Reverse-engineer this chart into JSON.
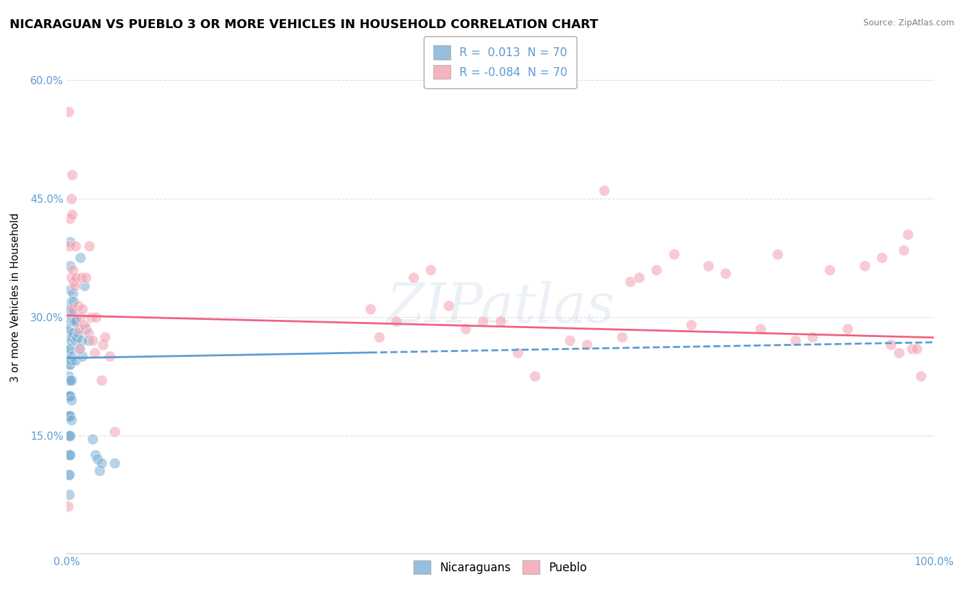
{
  "title": "NICARAGUAN VS PUEBLO 3 OR MORE VEHICLES IN HOUSEHOLD CORRELATION CHART",
  "source": "Source: ZipAtlas.com",
  "ylabel_label": "3 or more Vehicles in Household",
  "nicaraguan_color": "#7bafd4",
  "pueblo_color": "#f4a0b0",
  "trendline_nicaraguan_color": "#5b9bd5",
  "trendline_pueblo_color": "#f06080",
  "watermark": "ZIPatlas",
  "nicaraguan_points": [
    [
      0.001,
      0.245
    ],
    [
      0.001,
      0.22
    ],
    [
      0.001,
      0.2
    ],
    [
      0.001,
      0.175
    ],
    [
      0.002,
      0.3
    ],
    [
      0.002,
      0.275
    ],
    [
      0.002,
      0.25
    ],
    [
      0.002,
      0.225
    ],
    [
      0.002,
      0.2
    ],
    [
      0.002,
      0.175
    ],
    [
      0.002,
      0.15
    ],
    [
      0.002,
      0.125
    ],
    [
      0.002,
      0.1
    ],
    [
      0.003,
      0.31
    ],
    [
      0.003,
      0.285
    ],
    [
      0.003,
      0.26
    ],
    [
      0.003,
      0.24
    ],
    [
      0.003,
      0.22
    ],
    [
      0.003,
      0.2
    ],
    [
      0.003,
      0.175
    ],
    [
      0.003,
      0.15
    ],
    [
      0.003,
      0.125
    ],
    [
      0.003,
      0.1
    ],
    [
      0.003,
      0.075
    ],
    [
      0.004,
      0.395
    ],
    [
      0.004,
      0.365
    ],
    [
      0.004,
      0.335
    ],
    [
      0.004,
      0.31
    ],
    [
      0.004,
      0.285
    ],
    [
      0.004,
      0.26
    ],
    [
      0.004,
      0.24
    ],
    [
      0.004,
      0.22
    ],
    [
      0.004,
      0.2
    ],
    [
      0.004,
      0.175
    ],
    [
      0.004,
      0.15
    ],
    [
      0.004,
      0.125
    ],
    [
      0.005,
      0.32
    ],
    [
      0.005,
      0.295
    ],
    [
      0.005,
      0.27
    ],
    [
      0.005,
      0.245
    ],
    [
      0.005,
      0.22
    ],
    [
      0.005,
      0.195
    ],
    [
      0.005,
      0.17
    ],
    [
      0.006,
      0.3
    ],
    [
      0.006,
      0.275
    ],
    [
      0.006,
      0.25
    ],
    [
      0.007,
      0.33
    ],
    [
      0.007,
      0.305
    ],
    [
      0.007,
      0.28
    ],
    [
      0.008,
      0.32
    ],
    [
      0.008,
      0.295
    ],
    [
      0.009,
      0.295
    ],
    [
      0.01,
      0.27
    ],
    [
      0.01,
      0.245
    ],
    [
      0.011,
      0.295
    ],
    [
      0.012,
      0.275
    ],
    [
      0.013,
      0.28
    ],
    [
      0.015,
      0.26
    ],
    [
      0.016,
      0.375
    ],
    [
      0.017,
      0.27
    ],
    [
      0.018,
      0.25
    ],
    [
      0.02,
      0.34
    ],
    [
      0.022,
      0.285
    ],
    [
      0.025,
      0.27
    ],
    [
      0.03,
      0.145
    ],
    [
      0.033,
      0.125
    ],
    [
      0.035,
      0.12
    ],
    [
      0.038,
      0.105
    ],
    [
      0.04,
      0.115
    ],
    [
      0.055,
      0.115
    ]
  ],
  "pueblo_points": [
    [
      0.001,
      0.06
    ],
    [
      0.002,
      0.56
    ],
    [
      0.003,
      0.39
    ],
    [
      0.004,
      0.425
    ],
    [
      0.005,
      0.45
    ],
    [
      0.005,
      0.35
    ],
    [
      0.006,
      0.43
    ],
    [
      0.006,
      0.48
    ],
    [
      0.007,
      0.36
    ],
    [
      0.007,
      0.31
    ],
    [
      0.008,
      0.345
    ],
    [
      0.009,
      0.34
    ],
    [
      0.01,
      0.39
    ],
    [
      0.011,
      0.35
    ],
    [
      0.013,
      0.315
    ],
    [
      0.014,
      0.285
    ],
    [
      0.015,
      0.26
    ],
    [
      0.016,
      0.3
    ],
    [
      0.017,
      0.35
    ],
    [
      0.018,
      0.31
    ],
    [
      0.02,
      0.29
    ],
    [
      0.022,
      0.35
    ],
    [
      0.025,
      0.28
    ],
    [
      0.026,
      0.39
    ],
    [
      0.028,
      0.3
    ],
    [
      0.03,
      0.27
    ],
    [
      0.032,
      0.255
    ],
    [
      0.034,
      0.3
    ],
    [
      0.04,
      0.22
    ],
    [
      0.042,
      0.265
    ],
    [
      0.044,
      0.275
    ],
    [
      0.05,
      0.25
    ],
    [
      0.055,
      0.155
    ],
    [
      0.35,
      0.31
    ],
    [
      0.36,
      0.275
    ],
    [
      0.38,
      0.295
    ],
    [
      0.4,
      0.35
    ],
    [
      0.42,
      0.36
    ],
    [
      0.44,
      0.315
    ],
    [
      0.46,
      0.285
    ],
    [
      0.48,
      0.295
    ],
    [
      0.5,
      0.295
    ],
    [
      0.52,
      0.255
    ],
    [
      0.54,
      0.225
    ],
    [
      0.58,
      0.27
    ],
    [
      0.6,
      0.265
    ],
    [
      0.62,
      0.46
    ],
    [
      0.64,
      0.275
    ],
    [
      0.65,
      0.345
    ],
    [
      0.66,
      0.35
    ],
    [
      0.68,
      0.36
    ],
    [
      0.7,
      0.38
    ],
    [
      0.72,
      0.29
    ],
    [
      0.74,
      0.365
    ],
    [
      0.76,
      0.355
    ],
    [
      0.8,
      0.285
    ],
    [
      0.82,
      0.38
    ],
    [
      0.84,
      0.27
    ],
    [
      0.86,
      0.275
    ],
    [
      0.88,
      0.36
    ],
    [
      0.9,
      0.285
    ],
    [
      0.92,
      0.365
    ],
    [
      0.94,
      0.375
    ],
    [
      0.95,
      0.265
    ],
    [
      0.96,
      0.255
    ],
    [
      0.965,
      0.385
    ],
    [
      0.97,
      0.405
    ],
    [
      0.975,
      0.26
    ],
    [
      0.98,
      0.26
    ],
    [
      0.985,
      0.225
    ]
  ],
  "xlim": [
    0.0,
    1.0
  ],
  "ylim": [
    0.0,
    0.65
  ],
  "r_nicaraguan": 0.013,
  "r_pueblo": -0.084,
  "n_nicaraguan": 70,
  "n_pueblo": 70,
  "ytick_vals": [
    0.15,
    0.3,
    0.45,
    0.6
  ],
  "ytick_labels": [
    "15.0%",
    "30.0%",
    "45.0%",
    "60.0%"
  ],
  "xtick_vals": [
    0.0,
    1.0
  ],
  "xtick_labels": [
    "0.0%",
    "100.0%"
  ],
  "background_color": "#ffffff",
  "grid_color": "#dddddd",
  "tick_color": "#5b9bd5",
  "trendline_nic_y0": 0.248,
  "trendline_nic_y1": 0.268,
  "trendline_pue_y0": 0.302,
  "trendline_pue_y1": 0.274
}
